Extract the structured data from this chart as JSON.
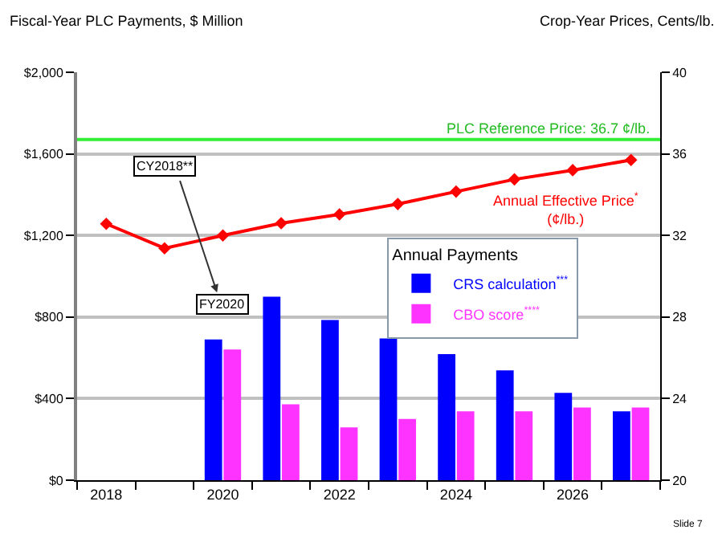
{
  "chart_data": {
    "type": "bar",
    "categories": [
      "2018",
      null,
      "2020",
      null,
      "2022",
      null,
      "2024",
      null,
      "2026",
      null
    ],
    "ylabel": "Fiscal-Year PLC Payments, $ Million",
    "y2label": "Crop-Year Prices, Cents/lb.",
    "legend_title": "Annual Payments",
    "legend": "right",
    "grid": "y",
    "ylim": [
      0,
      2000
    ],
    "yticks": [
      {
        "value": 0,
        "label": "$0"
      },
      {
        "value": 400,
        "label": "$400"
      },
      {
        "value": 800,
        "label": "$800"
      },
      {
        "value": 1200,
        "label": "$1,200"
      },
      {
        "value": 1600,
        "label": "$1,600"
      },
      {
        "value": 2000,
        "label": "$2,000"
      }
    ],
    "y2lim": [
      20,
      40
    ],
    "y2ticks": [
      20,
      24,
      28,
      32,
      36,
      40
    ],
    "series": [
      {
        "name": "CRS calculation$^{***}$",
        "color": "#0000ff",
        "values": [
          null,
          null,
          690,
          900,
          785,
          695,
          618,
          538,
          428,
          338
        ]
      },
      {
        "name": "CBO score$^{****}$",
        "color": "#ff33ff",
        "values": [
          null,
          null,
          641,
          372,
          259,
          300,
          338,
          338,
          356,
          356
        ]
      },
      {
        "name": "Annual Effective Price$^{*}$ (¢/lb.)",
        "type": "line",
        "axis": "y2",
        "color": "#ff0000",
        "marker": "diamond",
        "line_style": "solid",
        "values": [
          32.57,
          31.37,
          32.0,
          32.6,
          33.03,
          33.54,
          34.15,
          34.75,
          35.2,
          35.7
        ]
      }
    ],
    "ref_lines": [
      {
        "axis": "y2",
        "value": 36.7,
        "label": "PLC Reference Price: 36.7 ¢/lb.",
        "color": "#33ee33",
        "line_style": "solid"
      }
    ],
    "annotations": [
      "CY2018**",
      "FY2020",
      "Slide 7"
    ]
  }
}
